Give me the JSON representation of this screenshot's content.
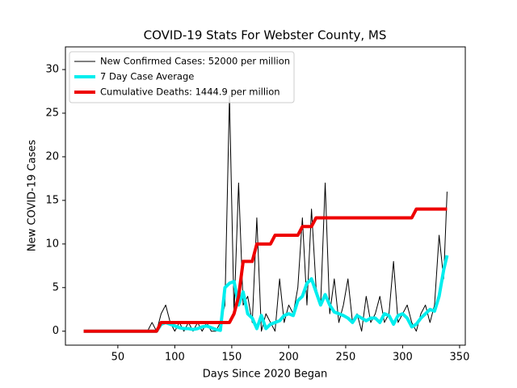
{
  "chart_data": {
    "type": "line",
    "title": "COVID-19 Stats For Webster County, MS",
    "xlabel": "Days Since 2020 Began",
    "ylabel": "New COVID-19 Cases",
    "x": [
      20,
      24,
      28,
      32,
      36,
      40,
      44,
      48,
      52,
      56,
      60,
      64,
      68,
      72,
      76,
      80,
      84,
      88,
      92,
      96,
      100,
      104,
      108,
      112,
      116,
      120,
      124,
      128,
      132,
      136,
      140,
      144,
      148,
      152,
      156,
      160,
      164,
      168,
      172,
      176,
      180,
      184,
      188,
      192,
      196,
      200,
      204,
      208,
      212,
      216,
      220,
      224,
      228,
      232,
      236,
      240,
      244,
      248,
      252,
      256,
      260,
      264,
      268,
      272,
      276,
      280,
      284,
      288,
      292,
      296,
      300,
      304,
      308,
      312,
      316,
      320,
      324,
      328,
      332,
      336,
      339
    ],
    "series": [
      {
        "name": "New Confirmed Cases: 52000 per million",
        "color": "#000000",
        "width": 1,
        "values": [
          0,
          0,
          0,
          0,
          0,
          0,
          0,
          0,
          0,
          0,
          0,
          0,
          0,
          0,
          0,
          1,
          0,
          2,
          3,
          1,
          0,
          1,
          0,
          1,
          0,
          1,
          0,
          1,
          0,
          0,
          1,
          3,
          27,
          2,
          17,
          3,
          4,
          1,
          13,
          0,
          2,
          1,
          0,
          6,
          1,
          3,
          2,
          5,
          13,
          3,
          14,
          5,
          3,
          17,
          2,
          6,
          1,
          3,
          6,
          1,
          2,
          0,
          4,
          1,
          2,
          4,
          1,
          2,
          8,
          1,
          2,
          3,
          1,
          0,
          2,
          3,
          1,
          3,
          11,
          6,
          16
        ]
      },
      {
        "name": "7 Day Case Average",
        "color": "#00eeee",
        "width": 4,
        "values": [
          0,
          0,
          0,
          0,
          0,
          0,
          0,
          0,
          0,
          0,
          0,
          0,
          0,
          0,
          0,
          0,
          0,
          0.8,
          1,
          0.8,
          0.6,
          0.4,
          0.3,
          0.3,
          0.2,
          0.3,
          0.5,
          0.6,
          0.4,
          0.2,
          0.1,
          5,
          5.5,
          5.7,
          3,
          4.5,
          2,
          1.5,
          0.3,
          1.8,
          0.3,
          0.8,
          1,
          1.2,
          1.8,
          2,
          1.8,
          3.5,
          4,
          5.5,
          6,
          4.5,
          3,
          4.2,
          3,
          2.2,
          2,
          1.8,
          1.5,
          1,
          1.8,
          1.5,
          1.2,
          1.5,
          1.5,
          1,
          2,
          1.8,
          0.8,
          1.8,
          2,
          1.5,
          0.5,
          0.8,
          1.5,
          2,
          2.5,
          2.3,
          4,
          7,
          8.7
        ]
      },
      {
        "name": "Cumulative Deaths: 1444.9 per million",
        "color": "#ee0000",
        "width": 4,
        "values": [
          0,
          0,
          0,
          0,
          0,
          0,
          0,
          0,
          0,
          0,
          0,
          0,
          0,
          0,
          0,
          0,
          0,
          1,
          1,
          1,
          1,
          1,
          1,
          1,
          1,
          1,
          1,
          1,
          1,
          1,
          1,
          1,
          1,
          2,
          4,
          8,
          8,
          8,
          10,
          10,
          10,
          10,
          11,
          11,
          11,
          11,
          11,
          11,
          12,
          12,
          12,
          13,
          13,
          13,
          13,
          13,
          13,
          13,
          13,
          13,
          13,
          13,
          13,
          13,
          13,
          13,
          13,
          13,
          13,
          13,
          13,
          13,
          13,
          14,
          14,
          14,
          14,
          14,
          14,
          14,
          14
        ]
      }
    ],
    "xlim": [
      4,
      355
    ],
    "ylim": [
      -1.6,
      32.6
    ],
    "xticks": [
      50,
      100,
      150,
      200,
      250,
      300,
      350
    ],
    "yticks": [
      0,
      5,
      10,
      15,
      20,
      25,
      30
    ],
    "legend": "upper left",
    "grid": false
  }
}
